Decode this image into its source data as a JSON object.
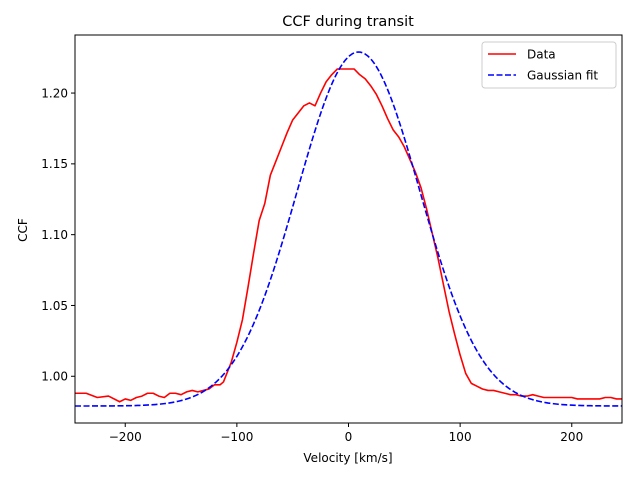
{
  "chart_data": {
    "type": "line",
    "title": "CCF during transit",
    "xlabel": "Velocity [km/s]",
    "ylabel": "CCF",
    "xlim": [
      -245,
      245
    ],
    "ylim": [
      0.967,
      1.241
    ],
    "xticks": [
      -200,
      -100,
      0,
      100,
      200
    ],
    "yticks": [
      1.0,
      1.05,
      1.1,
      1.15,
      1.2
    ],
    "xtick_labels": [
      "−200",
      "−100",
      "0",
      "100",
      "200"
    ],
    "ytick_labels": [
      "1.00",
      "1.05",
      "1.10",
      "1.15",
      "1.20"
    ],
    "grid": false,
    "legend_position": "top-right",
    "series": [
      {
        "name": "Data",
        "color": "#ff0000",
        "style": "solid",
        "x": [
          -245,
          -235,
          -225,
          -215,
          -205,
          -200,
          -195,
          -190,
          -185,
          -180,
          -175,
          -170,
          -165,
          -160,
          -155,
          -150,
          -145,
          -140,
          -135,
          -130,
          -125,
          -120,
          -115,
          -112,
          -110,
          -105,
          -100,
          -95,
          -90,
          -85,
          -80,
          -75,
          -70,
          -65,
          -60,
          -55,
          -50,
          -45,
          -40,
          -35,
          -30,
          -25,
          -20,
          -15,
          -10,
          -5,
          0,
          5,
          10,
          15,
          20,
          25,
          30,
          35,
          40,
          45,
          50,
          55,
          60,
          65,
          70,
          75,
          80,
          85,
          90,
          95,
          100,
          105,
          110,
          115,
          120,
          125,
          130,
          135,
          140,
          145,
          150,
          155,
          160,
          165,
          170,
          175,
          180,
          185,
          190,
          195,
          200,
          205,
          210,
          215,
          220,
          225,
          230,
          235,
          240,
          245
        ],
        "y": [
          0.988,
          0.988,
          0.985,
          0.986,
          0.982,
          0.984,
          0.983,
          0.985,
          0.986,
          0.988,
          0.988,
          0.986,
          0.985,
          0.988,
          0.988,
          0.987,
          0.989,
          0.99,
          0.989,
          0.99,
          0.991,
          0.994,
          0.994,
          0.996,
          1.0,
          1.01,
          1.024,
          1.04,
          1.063,
          1.087,
          1.11,
          1.122,
          1.142,
          1.152,
          1.162,
          1.172,
          1.181,
          1.186,
          1.191,
          1.193,
          1.191,
          1.2,
          1.208,
          1.213,
          1.217,
          1.217,
          1.217,
          1.217,
          1.213,
          1.21,
          1.205,
          1.199,
          1.191,
          1.182,
          1.174,
          1.169,
          1.162,
          1.153,
          1.144,
          1.133,
          1.118,
          1.101,
          1.084,
          1.065,
          1.046,
          1.03,
          1.015,
          1.002,
          0.995,
          0.993,
          0.991,
          0.99,
          0.99,
          0.989,
          0.988,
          0.987,
          0.987,
          0.986,
          0.986,
          0.987,
          0.986,
          0.985,
          0.985,
          0.985,
          0.985,
          0.985,
          0.985,
          0.984,
          0.984,
          0.984,
          0.984,
          0.984,
          0.985,
          0.985,
          0.984,
          0.984
        ]
      },
      {
        "name": "Gaussian fit",
        "color": "#0000ff",
        "style": "dashed",
        "model": "gaussian",
        "baseline": 0.979,
        "amplitude": 0.25,
        "center": 9,
        "sigma": 55
      }
    ]
  }
}
